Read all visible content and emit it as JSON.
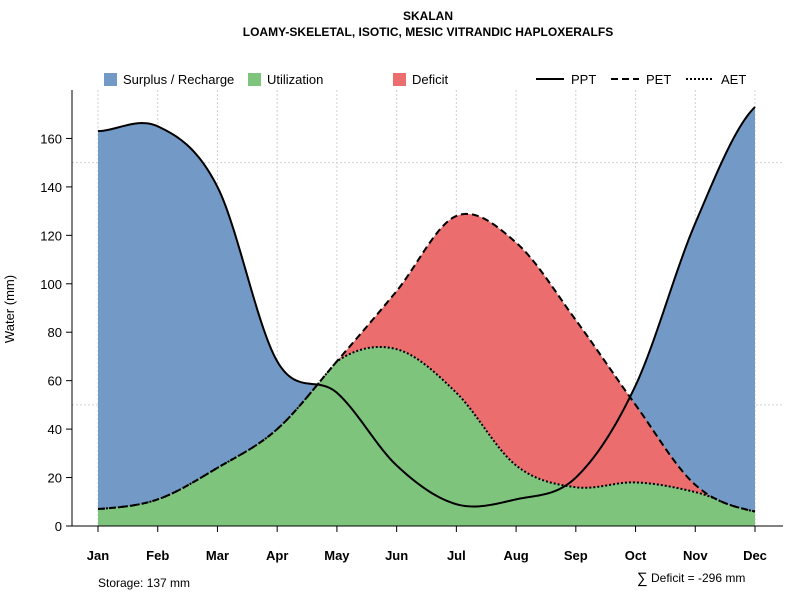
{
  "chart_data": {
    "type": "area",
    "title": "SKALAN",
    "subtitle": "LOAMY-SKELETAL, ISOTIC, MESIC VITRANDIC HAPLOXERALFS",
    "ylabel": "Water (mm)",
    "xlabel": "",
    "ylim": [
      0,
      180
    ],
    "yticks": [
      0,
      20,
      40,
      60,
      80,
      100,
      120,
      140,
      160
    ],
    "categories": [
      "Jan",
      "Feb",
      "Mar",
      "Apr",
      "May",
      "Jun",
      "Jul",
      "Aug",
      "Sep",
      "Oct",
      "Nov",
      "Dec"
    ],
    "series": [
      {
        "name": "PPT",
        "style": "solid",
        "values": [
          163,
          165,
          140,
          68,
          55,
          25,
          9,
          11,
          20,
          58,
          125,
          173
        ]
      },
      {
        "name": "PET",
        "style": "dashed",
        "values": [
          7,
          11,
          24,
          40,
          68,
          97,
          128,
          117,
          85,
          50,
          17,
          6
        ]
      },
      {
        "name": "AET",
        "style": "dotted",
        "values": [
          7,
          11,
          24,
          40,
          68,
          73,
          55,
          25,
          16,
          18,
          14,
          6
        ]
      }
    ],
    "legend": [
      {
        "label": "Surplus / Recharge",
        "kind": "area",
        "color": "#7399C6"
      },
      {
        "label": "Utilization",
        "kind": "area",
        "color": "#7FC47D"
      },
      {
        "label": "Deficit",
        "kind": "area",
        "color": "#EB6D6D"
      },
      {
        "label": "PPT",
        "kind": "line",
        "style": "solid"
      },
      {
        "label": "PET",
        "kind": "line",
        "style": "dashed"
      },
      {
        "label": "AET",
        "kind": "line",
        "style": "dotted"
      }
    ],
    "legend_position": "top",
    "grid": true,
    "colors": {
      "surplus": "#7399C6",
      "utilization": "#7FC47D",
      "deficit": "#EB6D6D"
    }
  },
  "footer": {
    "storage": "Storage: 137 mm",
    "deficit_symbol": "∑",
    "deficit": "Deficit = -296 mm"
  }
}
